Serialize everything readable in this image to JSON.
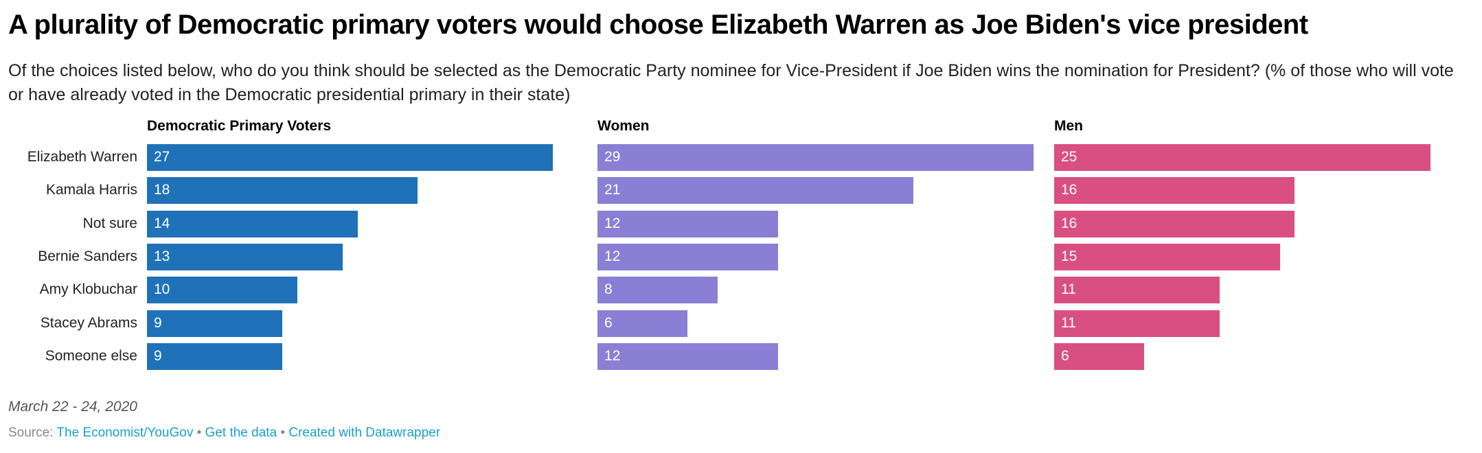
{
  "title": "A plurality of Democratic primary voters would choose Elizabeth Warren as Joe Biden's vice president",
  "subtitle": "Of the choices listed below, who do you think should be selected as the Democratic Party nominee for Vice-President if Joe Biden wins the nomination for President? (% of those who will vote or have already voted in the Democratic presidential primary in their state)",
  "footer": {
    "date": "March 22 - 24, 2020",
    "source_label": "Source:",
    "source_link": "The Economist/YouGov",
    "separator": "•",
    "get_data": "Get the data",
    "created_with": "Created with Datawrapper"
  },
  "chart_data": {
    "type": "bar",
    "orientation": "horizontal",
    "categories": [
      "Elizabeth Warren",
      "Kamala Harris",
      "Not sure",
      "Bernie Sanders",
      "Amy Klobuchar",
      "Stacey Abrams",
      "Someone else"
    ],
    "series": [
      {
        "name": "Democratic Primary Voters",
        "color": "#1f72b8",
        "values": [
          27,
          18,
          14,
          13,
          10,
          9,
          9
        ]
      },
      {
        "name": "Women",
        "color": "#8a7fd4",
        "values": [
          29,
          21,
          12,
          12,
          8,
          6,
          12
        ]
      },
      {
        "name": "Men",
        "color": "#d94f82",
        "values": [
          25,
          16,
          16,
          15,
          11,
          11,
          6
        ]
      }
    ],
    "xlim": [
      0,
      29
    ],
    "grid": false,
    "legend": "none"
  }
}
